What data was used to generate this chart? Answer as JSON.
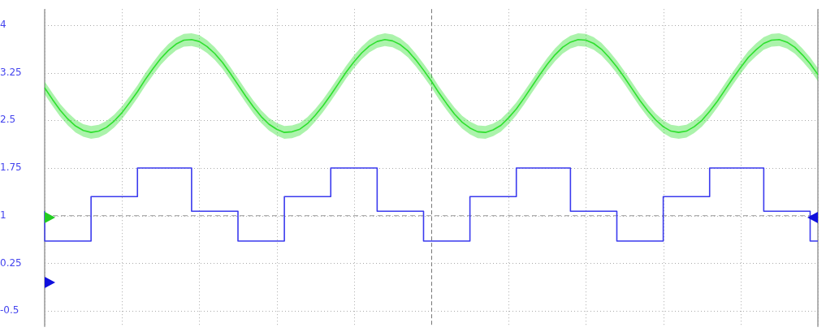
{
  "chart_data": {
    "type": "line",
    "tick_labels": "y",
    "grid": true,
    "marker": "none",
    "line_style": "solid",
    "categories": [
      null,
      null,
      null,
      null,
      null,
      null,
      null,
      null,
      null,
      null,
      null,
      null,
      null,
      null,
      null,
      null,
      null,
      null,
      null,
      null,
      null,
      null,
      null,
      null,
      null,
      null,
      null,
      null,
      null,
      null,
      null,
      null,
      null,
      null,
      null,
      null,
      null,
      null,
      null,
      null,
      null,
      null,
      null,
      null,
      null,
      null,
      null,
      null,
      null,
      null,
      null,
      null,
      null,
      null,
      null,
      null,
      null,
      null,
      null,
      null,
      null,
      null,
      null,
      null,
      null,
      null,
      null,
      null,
      null,
      null,
      null,
      null,
      null,
      null,
      null,
      null,
      null,
      null,
      null,
      null,
      null,
      null,
      null,
      null,
      null,
      null,
      null,
      null,
      null,
      null,
      null,
      null,
      null,
      null,
      null,
      null,
      null,
      null,
      null,
      null,
      null
    ],
    "ylim": [
      -0.75,
      4.25
    ],
    "yticks": [
      -0.5,
      0.25,
      1,
      1.75,
      2.5,
      3.25,
      4
    ],
    "ref_lines": [
      {
        "axis": "y",
        "value": 1,
        "color": "#999999",
        "line_style": "dashed"
      }
    ],
    "series": [
      {
        "color": "#2ee02e",
        "values": [
          3.01,
          2.83,
          2.66,
          2.52,
          2.41,
          2.34,
          2.31,
          2.33,
          2.39,
          2.49,
          2.62,
          2.78,
          2.95,
          3.14,
          3.31,
          3.47,
          3.6,
          3.7,
          3.76,
          3.77,
          3.74,
          3.66,
          3.55,
          3.41,
          3.24,
          3.06,
          2.88,
          2.71,
          2.56,
          2.44,
          2.36,
          2.31,
          2.32,
          2.36,
          2.45,
          2.58,
          2.73,
          2.9,
          3.08,
          3.26,
          3.42,
          3.56,
          3.67,
          3.74,
          3.77,
          3.75,
          3.69,
          3.59,
          3.45,
          3.29,
          3.12,
          2.93,
          2.76,
          2.6,
          2.47,
          2.38,
          2.32,
          2.31,
          2.35,
          2.42,
          2.54,
          2.68,
          2.85,
          3.03,
          3.21,
          3.38,
          3.53,
          3.65,
          3.73,
          3.77,
          3.76,
          3.71,
          3.62,
          3.49,
          3.34,
          3.17,
          2.99,
          2.81,
          2.65,
          2.51,
          2.4,
          2.33,
          2.31,
          2.33,
          2.4,
          2.5,
          2.64,
          2.8,
          2.98,
          3.16,
          3.33,
          3.49,
          3.61,
          3.71,
          3.76,
          3.77,
          3.73,
          3.65,
          3.53,
          3.39,
          3.22
        ],
        "lower": [
          2.91,
          2.73,
          2.56,
          2.42,
          2.31,
          2.24,
          2.21,
          2.23,
          2.29,
          2.39,
          2.52,
          2.68,
          2.85,
          3.04,
          3.21,
          3.37,
          3.5,
          3.6,
          3.66,
          3.67,
          3.64,
          3.56,
          3.45,
          3.31,
          3.14,
          2.96,
          2.78,
          2.61,
          2.46,
          2.34,
          2.26,
          2.21,
          2.22,
          2.26,
          2.35,
          2.48,
          2.63,
          2.8,
          2.98,
          3.16,
          3.32,
          3.46,
          3.57,
          3.64,
          3.67,
          3.65,
          3.59,
          3.49,
          3.35,
          3.19,
          3.02,
          2.83,
          2.66,
          2.5,
          2.37,
          2.28,
          2.22,
          2.21,
          2.25,
          2.32,
          2.44,
          2.58,
          2.75,
          2.93,
          3.11,
          3.28,
          3.43,
          3.55,
          3.63,
          3.67,
          3.66,
          3.61,
          3.52,
          3.39,
          3.24,
          3.07,
          2.89,
          2.71,
          2.55,
          2.41,
          2.3,
          2.23,
          2.21,
          2.23,
          2.3,
          2.4,
          2.54,
          2.7,
          2.88,
          3.06,
          3.23,
          3.39,
          3.51,
          3.61,
          3.66,
          3.67,
          3.63,
          3.55,
          3.43,
          3.29,
          3.12
        ],
        "upper": [
          3.11,
          2.93,
          2.76,
          2.62,
          2.51,
          2.44,
          2.41,
          2.43,
          2.49,
          2.59,
          2.72,
          2.88,
          3.05,
          3.24,
          3.41,
          3.57,
          3.7,
          3.8,
          3.86,
          3.87,
          3.84,
          3.76,
          3.65,
          3.51,
          3.34,
          3.16,
          2.98,
          2.81,
          2.66,
          2.54,
          2.46,
          2.41,
          2.42,
          2.46,
          2.55,
          2.68,
          2.83,
          3.0,
          3.18,
          3.36,
          3.52,
          3.66,
          3.77,
          3.84,
          3.87,
          3.85,
          3.79,
          3.69,
          3.55,
          3.39,
          3.22,
          3.03,
          2.86,
          2.7,
          2.57,
          2.48,
          2.42,
          2.41,
          2.45,
          2.52,
          2.64,
          2.78,
          2.95,
          3.13,
          3.31,
          3.48,
          3.63,
          3.75,
          3.83,
          3.87,
          3.86,
          3.81,
          3.72,
          3.59,
          3.44,
          3.27,
          3.09,
          2.91,
          2.75,
          2.61,
          2.5,
          2.43,
          2.41,
          2.43,
          2.5,
          2.6,
          2.74,
          2.9,
          3.08,
          3.26,
          3.43,
          3.59,
          3.71,
          3.81,
          3.86,
          3.87,
          3.83,
          3.75,
          3.63,
          3.49,
          3.32
        ]
      },
      {
        "type": "step",
        "color": "#3a3aee",
        "values": [
          1.07,
          0.6,
          0.6,
          0.6,
          0.6,
          0.6,
          0.6,
          1.3,
          1.3,
          1.3,
          1.3,
          1.3,
          1.3,
          1.75,
          1.75,
          1.75,
          1.75,
          1.75,
          1.75,
          1.75,
          1.07,
          1.07,
          1.07,
          1.07,
          1.07,
          1.07,
          0.6,
          0.6,
          0.6,
          0.6,
          0.6,
          0.6,
          1.3,
          1.3,
          1.3,
          1.3,
          1.3,
          1.3,
          1.75,
          1.75,
          1.75,
          1.75,
          1.75,
          1.75,
          1.07,
          1.07,
          1.07,
          1.07,
          1.07,
          1.07,
          0.6,
          0.6,
          0.6,
          0.6,
          0.6,
          0.6,
          1.3,
          1.3,
          1.3,
          1.3,
          1.3,
          1.3,
          1.75,
          1.75,
          1.75,
          1.75,
          1.75,
          1.75,
          1.75,
          1.07,
          1.07,
          1.07,
          1.07,
          1.07,
          1.07,
          0.6,
          0.6,
          0.6,
          0.6,
          0.6,
          0.6,
          1.3,
          1.3,
          1.3,
          1.3,
          1.3,
          1.3,
          1.75,
          1.75,
          1.75,
          1.75,
          1.75,
          1.75,
          1.75,
          1.07,
          1.07,
          1.07,
          1.07,
          1.07,
          1.07,
          0.6
        ]
      }
    ]
  }
}
